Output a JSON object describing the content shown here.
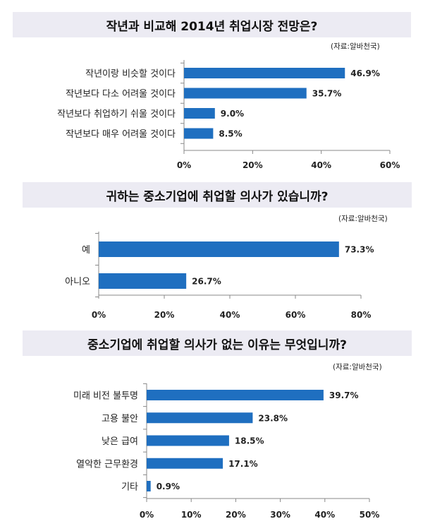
{
  "chart_data": [
    {
      "type": "bar",
      "orientation": "horizontal",
      "title": "작년과 비교해 2014년 취업시장 전망은?",
      "source": "(자료:알바천국)",
      "categories": [
        "작년이랑 비슷할 것이다",
        "작년보다 다소 어려울 것이다",
        "작년보다 취업하기 쉬울 것이다",
        "작년보다 매우 어려울 것이다"
      ],
      "values": [
        46.9,
        35.7,
        9.0,
        8.5
      ],
      "value_labels": [
        "46.9%",
        "35.7%",
        "9.0%",
        "8.5%"
      ],
      "xlim": [
        0,
        60
      ],
      "xticks": [
        "0%",
        "20%",
        "40%",
        "60%"
      ],
      "grid": false,
      "bar_color": "#1f6fc0"
    },
    {
      "type": "bar",
      "orientation": "horizontal",
      "title": "귀하는 중소기업에 취업할 의사가 있습니까?",
      "source": "(자료:알바천국)",
      "categories": [
        "예",
        "아니오"
      ],
      "values": [
        73.3,
        26.7
      ],
      "value_labels": [
        "73.3%",
        "26.7%"
      ],
      "xlim": [
        0,
        80
      ],
      "xticks": [
        "0%",
        "20%",
        "40%",
        "60%",
        "80%"
      ],
      "grid": false,
      "bar_color": "#1f6fc0"
    },
    {
      "type": "bar",
      "orientation": "horizontal",
      "title": "중소기업에 취업할 의사가 없는 이유는 무엇입니까?",
      "source": "(자료:알바천국)",
      "categories": [
        "미래 비전 불투명",
        "고용 불안",
        "낮은 급여",
        "열악한 근무환경",
        "기타"
      ],
      "values": [
        39.7,
        23.8,
        18.5,
        17.1,
        0.9
      ],
      "value_labels": [
        "39.7%",
        "23.8%",
        "18.5%",
        "17.1%",
        "0.9%"
      ],
      "xlim": [
        0,
        50
      ],
      "xticks": [
        "0%",
        "10%",
        "20%",
        "30%",
        "40%",
        "50%"
      ],
      "grid": false,
      "bar_color": "#1f6fc0"
    }
  ]
}
